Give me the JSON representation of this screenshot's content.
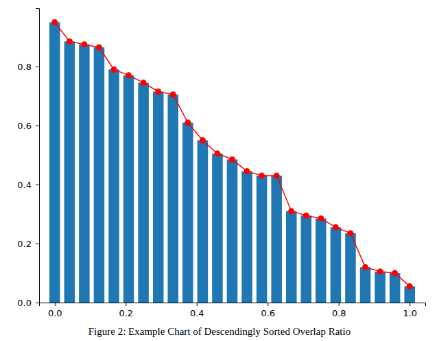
{
  "chart_data": {
    "type": "bar",
    "title": "Figure 2: Example Chart of Descendingly Sorted Overlap Ratio",
    "x": [
      0.0,
      0.0417,
      0.0833,
      0.125,
      0.1667,
      0.2083,
      0.25,
      0.2917,
      0.3333,
      0.375,
      0.4167,
      0.4583,
      0.5,
      0.5417,
      0.5833,
      0.625,
      0.6667,
      0.7083,
      0.75,
      0.7917,
      0.8333,
      0.875,
      0.9167,
      0.9583,
      1.0
    ],
    "series": [
      {
        "type": "bar",
        "color": "#1f77b4",
        "values": [
          0.95,
          0.885,
          0.875,
          0.865,
          0.79,
          0.77,
          0.745,
          0.715,
          0.705,
          0.61,
          0.55,
          0.505,
          0.485,
          0.445,
          0.43,
          0.43,
          0.31,
          0.295,
          0.285,
          0.255,
          0.235,
          0.12,
          0.105,
          0.1,
          0.055
        ]
      },
      {
        "type": "line",
        "color": "#ff0000",
        "marker": "circle",
        "values": [
          0.95,
          0.885,
          0.875,
          0.865,
          0.79,
          0.77,
          0.745,
          0.715,
          0.705,
          0.61,
          0.55,
          0.505,
          0.485,
          0.445,
          0.43,
          0.43,
          0.31,
          0.295,
          0.285,
          0.255,
          0.235,
          0.12,
          0.105,
          0.1,
          0.055
        ]
      }
    ],
    "xlim": [
      -0.044,
      1.044
    ],
    "ylim": [
      0,
      0.9975
    ],
    "xticks": [
      {
        "value": 0,
        "label": "0.0"
      },
      {
        "value": 0.2,
        "label": "0.2"
      },
      {
        "value": 0.4,
        "label": "0.4"
      },
      {
        "value": 0.6,
        "label": "0.6"
      },
      {
        "value": 0.8,
        "label": "0.8"
      },
      {
        "value": 1,
        "label": "1.0"
      }
    ],
    "yticks": [
      {
        "value": 0,
        "label": "0.0"
      },
      {
        "value": 0.2,
        "label": "0.2"
      },
      {
        "value": 0.4,
        "label": "0.4"
      },
      {
        "value": 0.6,
        "label": "0.6"
      },
      {
        "value": 0.8,
        "label": "0.8"
      }
    ],
    "grid": false
  }
}
